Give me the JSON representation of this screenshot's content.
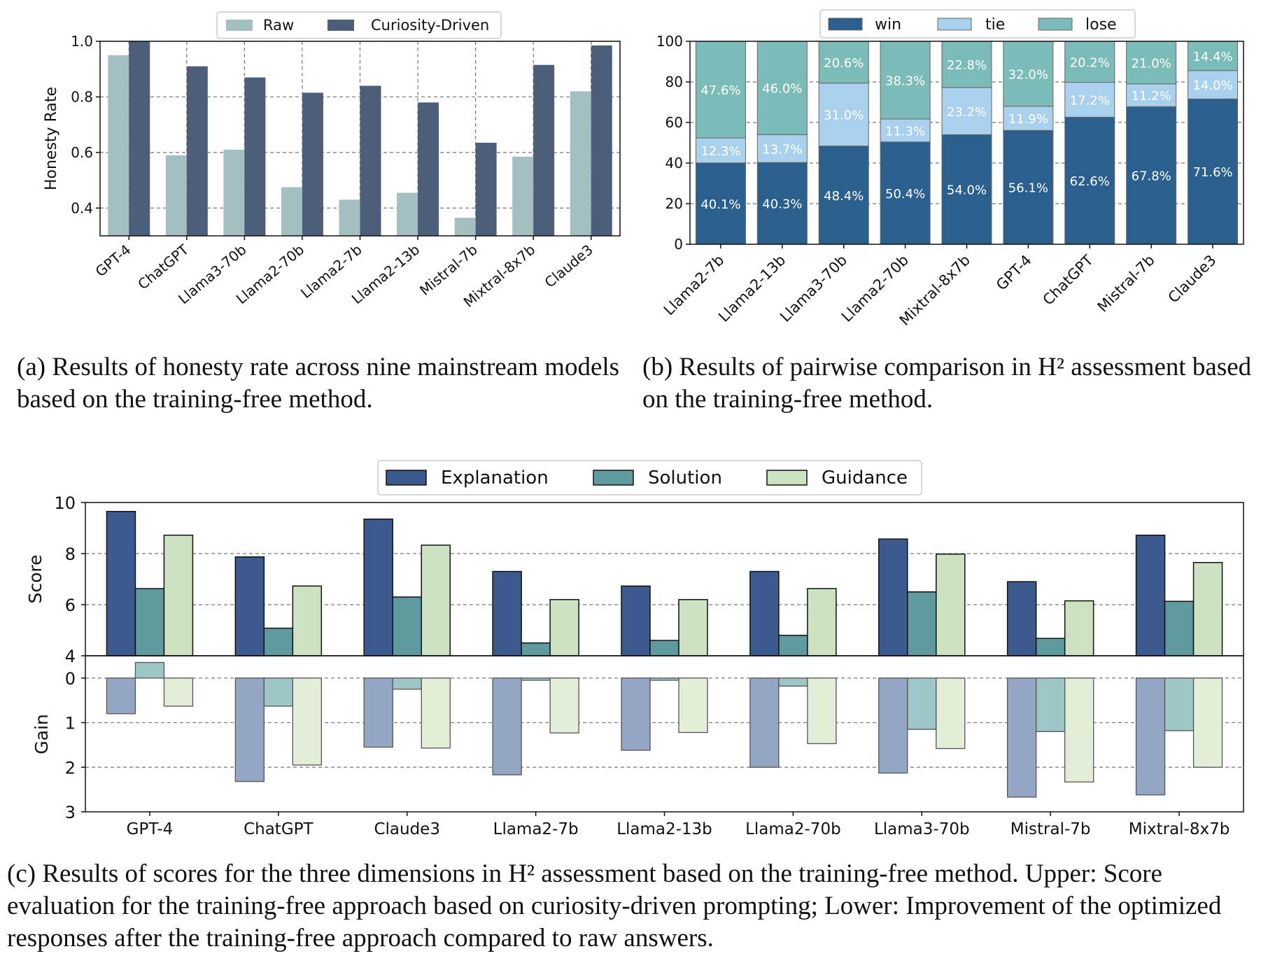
{
  "captions": {
    "a": "(a) Results of honesty rate across nine mainstream models based on the training-free method.",
    "b": "(b) Results of pairwise comparison in H² assessment based on the training-free method.",
    "c": "(c) Results of scores for the three dimensions in H² assessment based on the training-free method. Upper: Score evaluation for the training-free approach based on curiosity-driven prompting; Lower: Improvement of the optimized responses after the training-free approach compared to raw answers."
  },
  "colors": {
    "raw": "#a3bfbf",
    "curiosity": "#4c5e78",
    "win": "#2a5f8e",
    "tie": "#a9d0ec",
    "lose": "#7bbcb9",
    "explanation": "#3d5a8e",
    "solution": "#5f9a9e",
    "guidance": "#cde2c0",
    "explanation_gain": "#93a6c4",
    "solution_gain": "#9fc6c7",
    "guidance_gain": "#e3eed9"
  },
  "chart_data": [
    {
      "id": "a",
      "type": "bar",
      "categories": [
        "GPT-4",
        "ChatGPT",
        "Llama3-70b",
        "Llama2-70b",
        "Llama2-7b",
        "Llama2-13b",
        "Mistral-7b",
        "Mixtral-8x7b",
        "Claude3"
      ],
      "series": [
        {
          "name": "Raw",
          "values": [
            0.95,
            0.59,
            0.61,
            0.475,
            0.43,
            0.455,
            0.365,
            0.585,
            0.82
          ]
        },
        {
          "name": "Curiosity-Driven",
          "values": [
            1.0,
            0.91,
            0.87,
            0.815,
            0.84,
            0.78,
            0.635,
            0.915,
            0.985
          ]
        }
      ],
      "ylabel": "Honesty Rate",
      "ylim": [
        0.3,
        1.0
      ],
      "yticks": [
        "0.4",
        "0.6",
        "0.8",
        "1.0"
      ],
      "grid": true,
      "legend": "top-center"
    },
    {
      "id": "b",
      "type": "bar",
      "stacked": true,
      "categories": [
        "Llama2-7b",
        "Llama2-13b",
        "Llama3-70b",
        "Llama2-70b",
        "Mixtral-8x7b",
        "GPT-4",
        "ChatGPT",
        "Mistral-7b",
        "Claude3"
      ],
      "series": [
        {
          "name": "win",
          "values": [
            40.1,
            40.3,
            48.4,
            50.4,
            54.0,
            56.1,
            62.6,
            67.8,
            71.6
          ]
        },
        {
          "name": "tie",
          "values": [
            12.3,
            13.7,
            31.0,
            11.3,
            23.2,
            11.9,
            17.2,
            11.2,
            14.0
          ]
        },
        {
          "name": "lose",
          "values": [
            47.6,
            46.0,
            20.6,
            38.3,
            22.8,
            32.0,
            20.2,
            21.0,
            14.4
          ]
        }
      ],
      "labels": {
        "win": [
          "40.1%",
          "40.3%",
          "48.4%",
          "50.4%",
          "54.0%",
          "56.1%",
          "62.6%",
          "67.8%",
          "71.6%"
        ],
        "tie": [
          "12.3%",
          "13.7%",
          "31.0%",
          "11.3%",
          "23.2%",
          "11.9%",
          "17.2%",
          "11.2%",
          "14.0%"
        ],
        "lose": [
          "47.6%",
          "46.0%",
          "20.6%",
          "38.3%",
          "22.8%",
          "32.0%",
          "20.2%",
          "21.0%",
          "14.4%"
        ]
      },
      "ylim": [
        0,
        100
      ],
      "yticks": [
        "0",
        "20",
        "40",
        "60",
        "80",
        "100"
      ],
      "grid": true,
      "legend": "top-center"
    },
    {
      "id": "c-upper",
      "type": "bar",
      "categories": [
        "GPT-4",
        "ChatGPT",
        "Claude3",
        "Llama2-7b",
        "Llama2-13b",
        "Llama2-70b",
        "Llama3-70b",
        "Mistral-7b",
        "Mixtral-8x7b"
      ],
      "series": [
        {
          "name": "Explanation",
          "values": [
            9.65,
            7.87,
            9.35,
            7.3,
            6.73,
            7.3,
            8.57,
            6.9,
            8.72
          ]
        },
        {
          "name": "Solution",
          "values": [
            6.63,
            5.08,
            6.3,
            4.5,
            4.6,
            4.8,
            6.5,
            4.68,
            6.13
          ]
        },
        {
          "name": "Guidance",
          "values": [
            8.72,
            6.73,
            8.33,
            6.2,
            6.2,
            6.63,
            7.98,
            6.15,
            7.65
          ]
        }
      ],
      "ylabel": "Score",
      "ylim": [
        4,
        10
      ],
      "yticks": [
        "4",
        "6",
        "8",
        "10"
      ],
      "grid": true,
      "legend": "top-center"
    },
    {
      "id": "c-lower",
      "type": "bar",
      "categories": [
        "GPT-4",
        "ChatGPT",
        "Claude3",
        "Llama2-7b",
        "Llama2-13b",
        "Llama2-70b",
        "Llama3-70b",
        "Mistral-7b",
        "Mixtral-8x7b"
      ],
      "series": [
        {
          "name": "Explanation",
          "values": [
            0.8,
            2.32,
            1.55,
            2.17,
            1.62,
            2.0,
            2.13,
            2.67,
            2.62
          ]
        },
        {
          "name": "Solution",
          "values": [
            -0.35,
            0.63,
            0.25,
            0.05,
            0.05,
            0.18,
            1.15,
            1.2,
            1.18
          ]
        },
        {
          "name": "Guidance",
          "values": [
            0.63,
            1.95,
            1.57,
            1.23,
            1.22,
            1.47,
            1.58,
            2.33,
            2.0
          ]
        }
      ],
      "ylabel": "Gain",
      "ylim": [
        3,
        -0.5
      ],
      "yticks": [
        "0",
        "1",
        "2",
        "3"
      ],
      "grid": true
    }
  ]
}
